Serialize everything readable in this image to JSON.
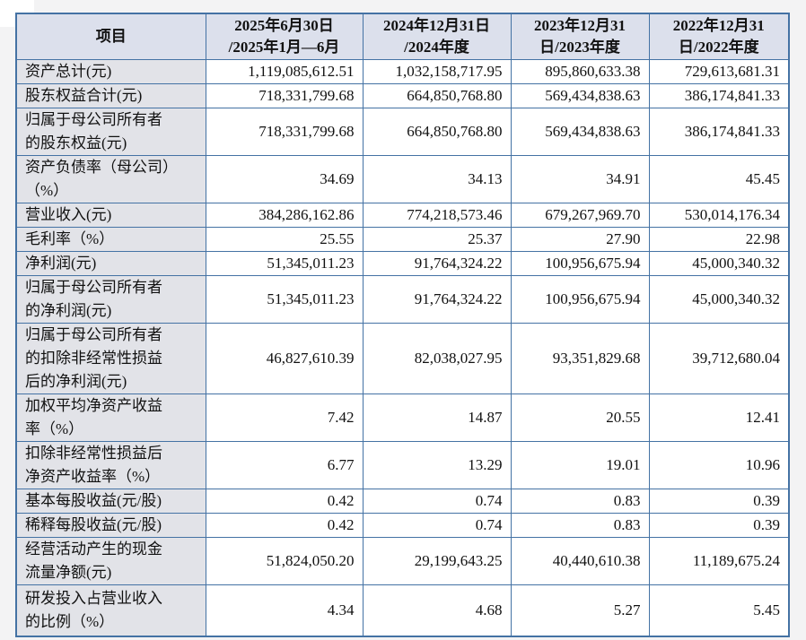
{
  "colors": {
    "border": "#4472a4",
    "header_bg": "#dce0ec",
    "label_bg": "#e2e3e8"
  },
  "table": {
    "columns": [
      "项目",
      "2025年6月30日\n/2025年1月—6月",
      "2024年12月31日\n/2024年度",
      "2023年12月31\n日/2023年度",
      "2022年12月31\n日/2022年度"
    ],
    "rows": [
      {
        "label": "资产总计(元)",
        "values": [
          "1,119,085,612.51",
          "1,032,158,717.95",
          "895,860,633.38",
          "729,613,681.31"
        ]
      },
      {
        "label": "股东权益合计(元)",
        "values": [
          "718,331,799.68",
          "664,850,768.80",
          "569,434,838.63",
          "386,174,841.33"
        ]
      },
      {
        "label": "归属于母公司所有者\n的股东权益(元)",
        "values": [
          "718,331,799.68",
          "664,850,768.80",
          "569,434,838.63",
          "386,174,841.33"
        ]
      },
      {
        "label": "资产负债率（母公司）\n（%）",
        "values": [
          "34.69",
          "34.13",
          "34.91",
          "45.45"
        ]
      },
      {
        "label": "营业收入(元)",
        "values": [
          "384,286,162.86",
          "774,218,573.46",
          "679,267,969.70",
          "530,014,176.34"
        ]
      },
      {
        "label": "毛利率（%）",
        "values": [
          "25.55",
          "25.37",
          "27.90",
          "22.98"
        ]
      },
      {
        "label": "净利润(元)",
        "values": [
          "51,345,011.23",
          "91,764,324.22",
          "100,956,675.94",
          "45,000,340.32"
        ]
      },
      {
        "label": "归属于母公司所有者\n的净利润(元)",
        "values": [
          "51,345,011.23",
          "91,764,324.22",
          "100,956,675.94",
          "45,000,340.32"
        ]
      },
      {
        "label": "归属于母公司所有者\n的扣除非经常性损益\n后的净利润(元)",
        "values": [
          "46,827,610.39",
          "82,038,027.95",
          "93,351,829.68",
          "39,712,680.04"
        ]
      },
      {
        "label": "加权平均净资产收益\n率（%）",
        "values": [
          "7.42",
          "14.87",
          "20.55",
          "12.41"
        ]
      },
      {
        "label": "扣除非经常性损益后\n净资产收益率（%）",
        "values": [
          "6.77",
          "13.29",
          "19.01",
          "10.96"
        ]
      },
      {
        "label": "基本每股收益(元/股)",
        "values": [
          "0.42",
          "0.74",
          "0.83",
          "0.39"
        ]
      },
      {
        "label": "稀释每股收益(元/股)",
        "values": [
          "0.42",
          "0.74",
          "0.83",
          "0.39"
        ]
      },
      {
        "label": "经营活动产生的现金\n流量净额(元)",
        "values": [
          "51,824,050.20",
          "29,199,643.25",
          "40,440,610.38",
          "11,189,675.24"
        ]
      },
      {
        "label": "研发投入占营业收入\n的比例（%）",
        "values": [
          "4.34",
          "4.68",
          "5.27",
          "5.45"
        ]
      }
    ]
  }
}
